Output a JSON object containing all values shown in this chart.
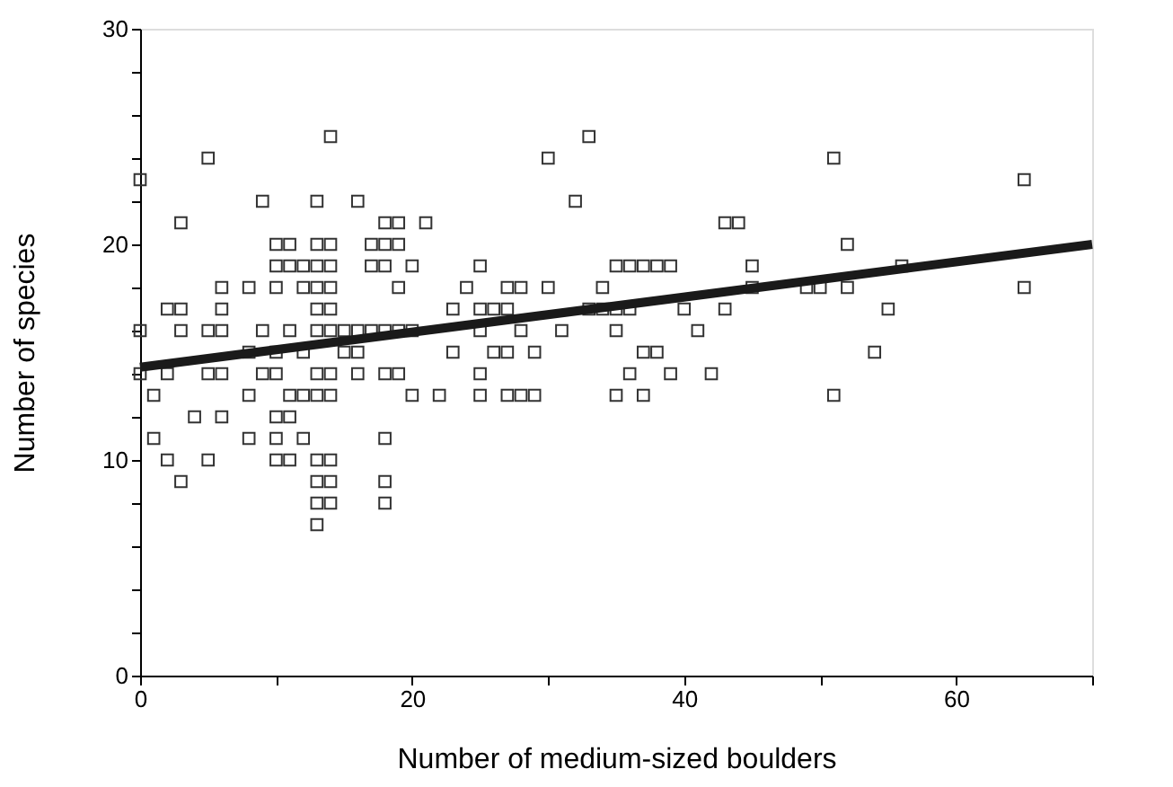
{
  "chart_data": {
    "type": "scatter",
    "xlabel": "Number of medium-sized boulders",
    "ylabel": "Number of species",
    "xlim": [
      0,
      70
    ],
    "ylim": [
      0,
      30
    ],
    "xticks": [
      0,
      {
        "value": 10,
        "label": null
      },
      20,
      {
        "value": 30,
        "label": null
      },
      40,
      {
        "value": 50,
        "label": null
      },
      60,
      {
        "value": 70,
        "label": null
      }
    ],
    "yticks": [
      0,
      {
        "value": 2,
        "label": null
      },
      {
        "value": 4,
        "label": null
      },
      {
        "value": 6,
        "label": null
      },
      {
        "value": 8,
        "label": null
      },
      10,
      {
        "value": 12,
        "label": null
      },
      {
        "value": 14,
        "label": null
      },
      {
        "value": 16,
        "label": null
      },
      {
        "value": 18,
        "label": null
      },
      20,
      {
        "value": 22,
        "label": null
      },
      {
        "value": 24,
        "label": null
      },
      {
        "value": 26,
        "label": null
      },
      {
        "value": 28,
        "label": null
      },
      30
    ],
    "grid": false,
    "series": [
      {
        "color": "#333333",
        "marker": "square",
        "x": [
          0,
          0,
          0,
          1,
          1,
          2,
          2,
          2,
          3,
          3,
          3,
          3,
          4,
          5,
          5,
          5,
          5,
          6,
          6,
          6,
          6,
          6,
          8,
          8,
          8,
          8,
          9,
          9,
          9,
          10,
          10,
          10,
          10,
          10,
          10,
          10,
          10,
          11,
          11,
          11,
          11,
          11,
          11,
          12,
          12,
          12,
          12,
          12,
          13,
          13,
          13,
          13,
          13,
          13,
          13,
          13,
          13,
          13,
          13,
          13,
          14,
          14,
          14,
          14,
          14,
          14,
          14,
          14,
          14,
          14,
          14,
          15,
          15,
          16,
          16,
          16,
          16,
          17,
          17,
          17,
          18,
          18,
          18,
          18,
          18,
          18,
          18,
          18,
          19,
          19,
          19,
          19,
          19,
          20,
          20,
          20,
          21,
          22,
          23,
          23,
          24,
          25,
          25,
          25,
          25,
          25,
          26,
          26,
          27,
          27,
          27,
          27,
          28,
          28,
          28,
          29,
          29,
          30,
          30,
          31,
          32,
          33,
          33,
          34,
          34,
          35,
          35,
          35,
          35,
          36,
          36,
          36,
          37,
          37,
          37,
          38,
          38,
          39,
          39,
          40,
          41,
          42,
          43,
          43,
          44,
          45,
          45,
          49,
          50,
          51,
          51,
          52,
          52,
          54,
          55,
          56,
          65,
          65
        ],
        "values": [
          23,
          16,
          14,
          13,
          11,
          17,
          14,
          10,
          21,
          17,
          16,
          9,
          12,
          24,
          16,
          14,
          10,
          18,
          17,
          16,
          14,
          12,
          18,
          15,
          13,
          11,
          22,
          16,
          14,
          20,
          19,
          18,
          15,
          14,
          12,
          11,
          10,
          20,
          19,
          16,
          13,
          12,
          10,
          19,
          18,
          15,
          13,
          11,
          22,
          20,
          19,
          18,
          17,
          16,
          14,
          13,
          10,
          9,
          8,
          7,
          25,
          20,
          19,
          18,
          17,
          16,
          14,
          13,
          10,
          9,
          8,
          16,
          15,
          22,
          16,
          15,
          14,
          20,
          19,
          16,
          21,
          20,
          19,
          16,
          14,
          11,
          9,
          8,
          21,
          20,
          18,
          16,
          14,
          19,
          16,
          13,
          21,
          13,
          17,
          15,
          18,
          19,
          17,
          16,
          14,
          13,
          17,
          15,
          18,
          17,
          15,
          13,
          18,
          16,
          13,
          15,
          13,
          24,
          18,
          16,
          22,
          25,
          17,
          18,
          17,
          19,
          17,
          16,
          13,
          19,
          17,
          14,
          19,
          15,
          13,
          19,
          15,
          19,
          14,
          17,
          16,
          14,
          21,
          17,
          21,
          19,
          18,
          18,
          18,
          24,
          13,
          20,
          18,
          15,
          17,
          19,
          23,
          18
        ]
      },
      {
        "type": "line",
        "color": "#1a1a1a",
        "x": [
          0,
          70
        ],
        "values": [
          14.3,
          20.0
        ]
      }
    ]
  }
}
